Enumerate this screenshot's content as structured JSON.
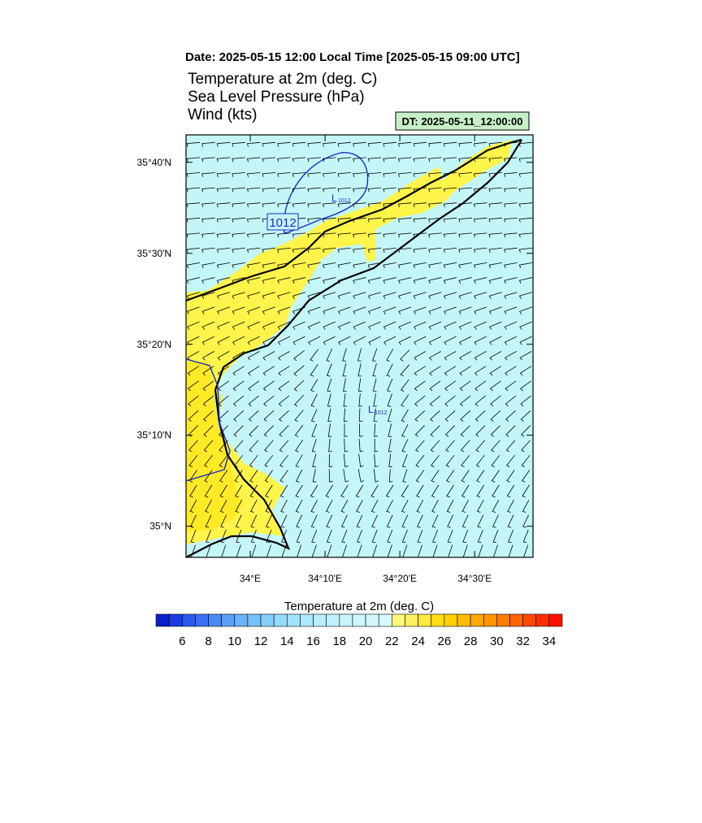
{
  "header": {
    "date": "Date: 2025-05-15  12:00 Local Time [2025-05-15  09:00 UTC]",
    "fields": [
      "Temperature at 2m   (deg. C)",
      "Sea Level Pressure   (hPa)",
      "Wind   (kts)"
    ],
    "dt": "DT: 2025-05-11_12:00:00"
  },
  "map": {
    "xlim": [
      33.857,
      34.63
    ],
    "ylim": [
      34.943,
      35.717
    ],
    "xticks": [
      {
        "value": 34.0,
        "label": "34°E"
      },
      {
        "value": 34.1667,
        "label": "34°10'E"
      },
      {
        "value": 34.3333,
        "label": "34°20'E"
      },
      {
        "value": 34.5,
        "label": "34°30'E"
      }
    ],
    "yticks": [
      {
        "value": 35.0,
        "label": "35°N"
      },
      {
        "value": 35.1667,
        "label": "35°10'N"
      },
      {
        "value": 35.3333,
        "label": "35°20'N"
      },
      {
        "value": 35.5,
        "label": "35°30'N"
      },
      {
        "value": 35.6667,
        "label": "35°40'N"
      }
    ],
    "contour_label": 1012,
    "lows": [
      {
        "letter": "L",
        "pressure": 1012
      },
      {
        "letter": "L",
        "pressure": 1012
      }
    ]
  },
  "colorbar": {
    "title": "Temperature at 2m  (deg. C)",
    "range": [
      4,
      35
    ],
    "ticks": [
      6,
      8,
      10,
      12,
      14,
      16,
      18,
      20,
      22,
      24,
      26,
      28,
      30,
      32,
      34
    ],
    "colors": [
      "#0a1ecc",
      "#1e3ce0",
      "#2a5af0",
      "#3a72f5",
      "#4a8af8",
      "#5aa0fa",
      "#6ab2fb",
      "#78c2fc",
      "#86cefc",
      "#94dafc",
      "#a2e2fc",
      "#aee8fc",
      "#b8eefc",
      "#c0f2fc",
      "#c8f4fc",
      "#ccf6fc",
      "#d2f8fc",
      "#d8fafc",
      "#fff87a",
      "#fff060",
      "#ffe840",
      "#ffdc10",
      "#ffd000",
      "#ffbc00",
      "#ffa800",
      "#ff9400",
      "#ff7c00",
      "#ff6400",
      "#ff4800",
      "#ff2c00",
      "#ff1000"
    ]
  }
}
